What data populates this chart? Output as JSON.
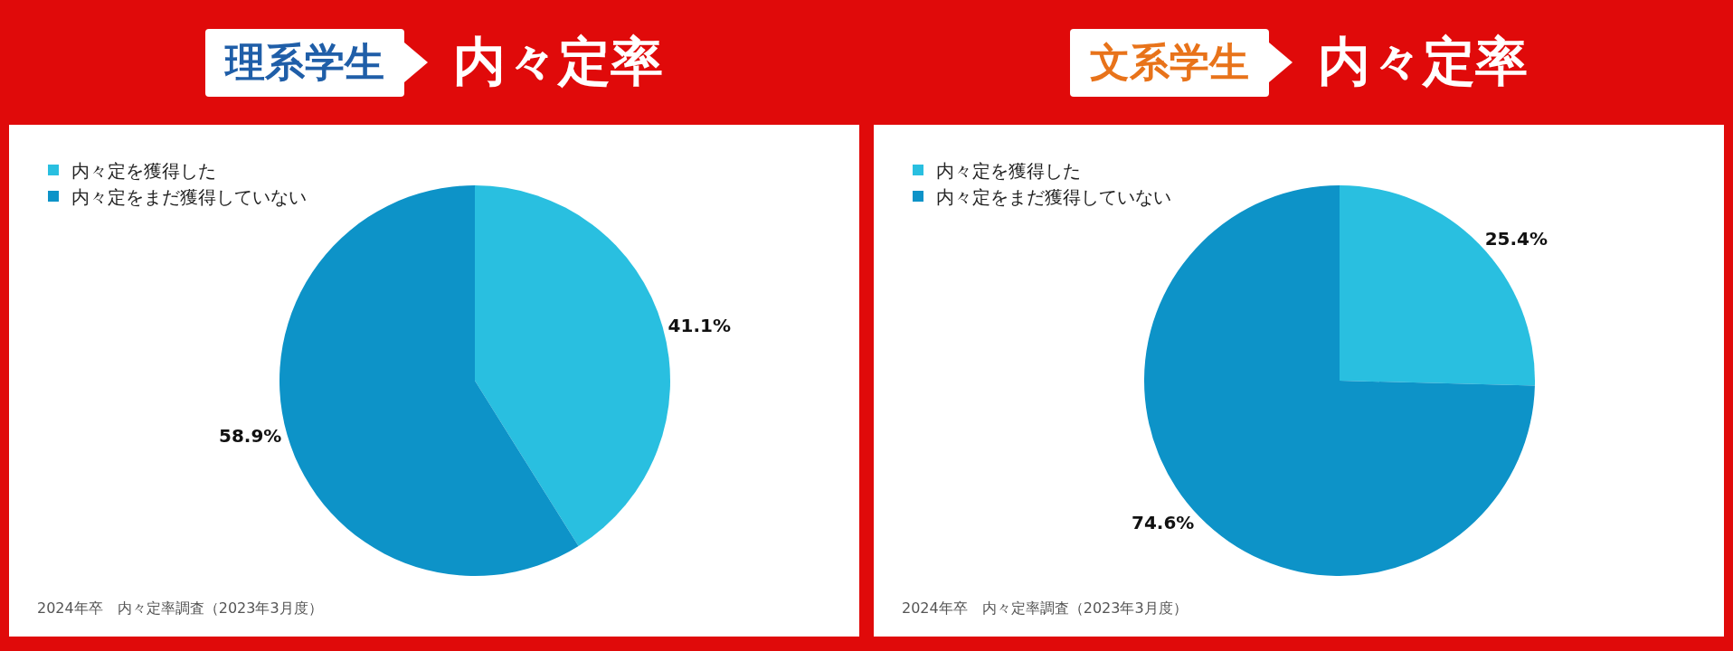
{
  "chart_data": [
    {
      "type": "pie",
      "title": "理系学生",
      "subtitle": "内々定率",
      "categories": [
        "内々定を獲得した",
        "内々定をまだ獲得していない"
      ],
      "values": [
        41.1,
        58.9
      ],
      "value_labels": [
        "41.1%",
        "58.9%"
      ],
      "colors": [
        "#29bfe0",
        "#0d93c8"
      ],
      "legend": "top left",
      "annotations": [
        "2024年卒　内々定率調査（2023年3月度）"
      ]
    },
    {
      "type": "pie",
      "title": "文系学生",
      "subtitle": "内々定率",
      "categories": [
        "内々定を獲得した",
        "内々定をまだ獲得していない"
      ],
      "values": [
        25.4,
        74.6
      ],
      "value_labels": [
        "25.4%",
        "74.6%"
      ],
      "colors": [
        "#29bfe0",
        "#0d93c8"
      ],
      "legend": "top left",
      "annotations": [
        "2024年卒　内々定率調査（2023年3月度）"
      ]
    }
  ]
}
